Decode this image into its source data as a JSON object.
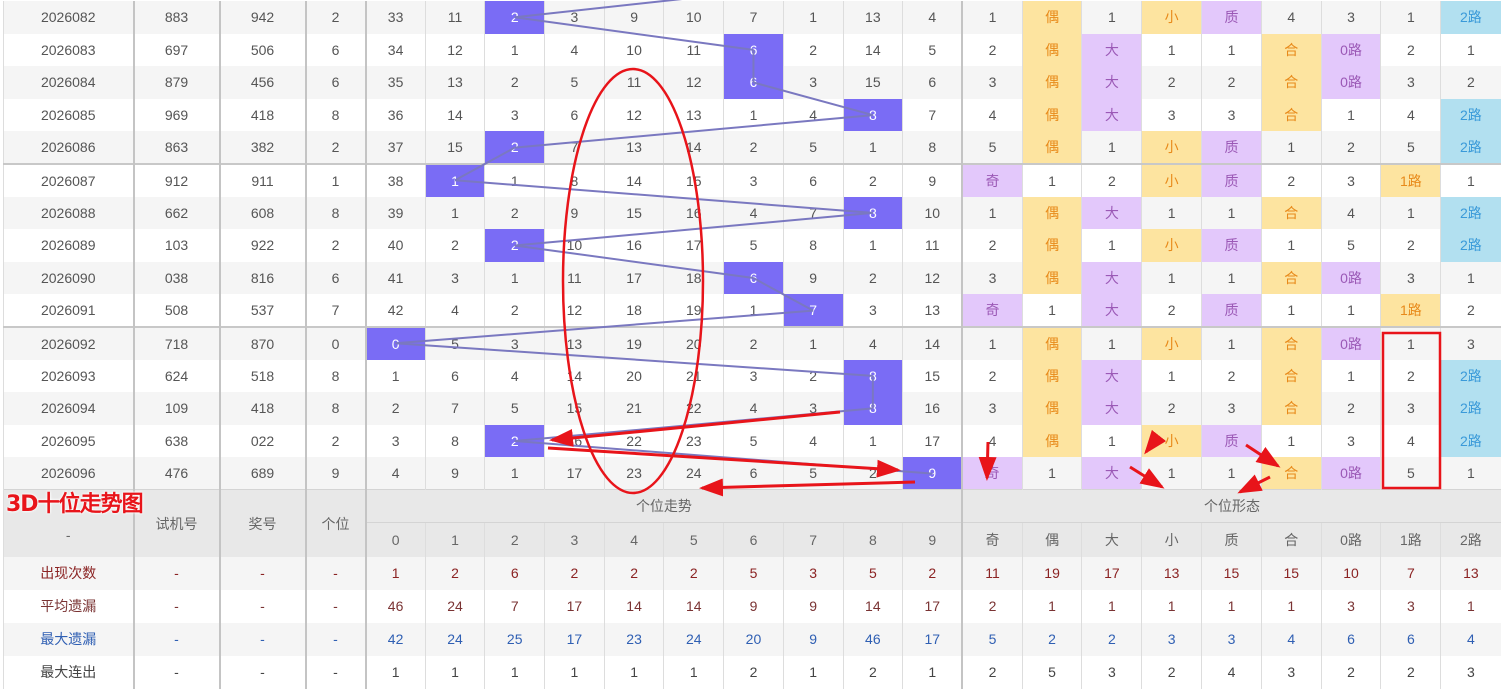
{
  "title_overlay": "3D十位走势图",
  "header": {
    "issue": "-",
    "test_number": "试机号",
    "draw_number": "奖号",
    "ones": "个位",
    "trend_group": "个位走势",
    "form_group": "个位形态",
    "digits": [
      "0",
      "1",
      "2",
      "3",
      "4",
      "5",
      "6",
      "7",
      "8",
      "9"
    ],
    "forms": [
      "奇",
      "偶",
      "大",
      "小",
      "质",
      "合",
      "0路",
      "1路",
      "2路"
    ]
  },
  "colors": {
    "hit": "#7a6cf5",
    "trend_line": "#7a78c0",
    "form_highlight": [
      "purple",
      "yellow",
      "purple",
      "yellow",
      "purple",
      "yellow",
      "purple",
      "yellow",
      "blue"
    ],
    "annotation": "#e8141a"
  },
  "rows": [
    {
      "issue": "2026082",
      "test": "883",
      "draw": "942",
      "ones": "2",
      "trend": [
        "33",
        "11",
        "2",
        "3",
        "9",
        "10",
        "7",
        "1",
        "13",
        "4"
      ],
      "form": [
        "1",
        "偶",
        "1",
        "小",
        "质",
        "4",
        "3",
        "1",
        "2路"
      ]
    },
    {
      "issue": "2026083",
      "test": "697",
      "draw": "506",
      "ones": "6",
      "trend": [
        "34",
        "12",
        "1",
        "4",
        "10",
        "11",
        "6",
        "2",
        "14",
        "5"
      ],
      "form": [
        "2",
        "偶",
        "大",
        "1",
        "1",
        "合",
        "0路",
        "2",
        "1"
      ]
    },
    {
      "issue": "2026084",
      "test": "879",
      "draw": "456",
      "ones": "6",
      "trend": [
        "35",
        "13",
        "2",
        "5",
        "11",
        "12",
        "6",
        "3",
        "15",
        "6"
      ],
      "form": [
        "3",
        "偶",
        "大",
        "2",
        "2",
        "合",
        "0路",
        "3",
        "2"
      ]
    },
    {
      "issue": "2026085",
      "test": "969",
      "draw": "418",
      "ones": "8",
      "trend": [
        "36",
        "14",
        "3",
        "6",
        "12",
        "13",
        "1",
        "4",
        "8",
        "7"
      ],
      "form": [
        "4",
        "偶",
        "大",
        "3",
        "3",
        "合",
        "1",
        "4",
        "2路"
      ]
    },
    {
      "issue": "2026086",
      "test": "863",
      "draw": "382",
      "ones": "2",
      "trend": [
        "37",
        "15",
        "2",
        "7",
        "13",
        "14",
        "2",
        "5",
        "1",
        "8"
      ],
      "form": [
        "5",
        "偶",
        "1",
        "小",
        "质",
        "1",
        "2",
        "5",
        "2路"
      ]
    },
    {
      "issue": "2026087",
      "test": "912",
      "draw": "911",
      "ones": "1",
      "trend": [
        "38",
        "1",
        "1",
        "8",
        "14",
        "15",
        "3",
        "6",
        "2",
        "9"
      ],
      "form": [
        "奇",
        "1",
        "2",
        "小",
        "质",
        "2",
        "3",
        "1路",
        "1"
      ]
    },
    {
      "issue": "2026088",
      "test": "662",
      "draw": "608",
      "ones": "8",
      "trend": [
        "39",
        "1",
        "2",
        "9",
        "15",
        "16",
        "4",
        "7",
        "8",
        "10"
      ],
      "form": [
        "1",
        "偶",
        "大",
        "1",
        "1",
        "合",
        "4",
        "1",
        "2路"
      ]
    },
    {
      "issue": "2026089",
      "test": "103",
      "draw": "922",
      "ones": "2",
      "trend": [
        "40",
        "2",
        "2",
        "10",
        "16",
        "17",
        "5",
        "8",
        "1",
        "11"
      ],
      "form": [
        "2",
        "偶",
        "1",
        "小",
        "质",
        "1",
        "5",
        "2",
        "2路"
      ]
    },
    {
      "issue": "2026090",
      "test": "038",
      "draw": "816",
      "ones": "6",
      "trend": [
        "41",
        "3",
        "1",
        "11",
        "17",
        "18",
        "6",
        "9",
        "2",
        "12"
      ],
      "form": [
        "3",
        "偶",
        "大",
        "1",
        "1",
        "合",
        "0路",
        "3",
        "1"
      ]
    },
    {
      "issue": "2026091",
      "test": "508",
      "draw": "537",
      "ones": "7",
      "trend": [
        "42",
        "4",
        "2",
        "12",
        "18",
        "19",
        "1",
        "7",
        "3",
        "13"
      ],
      "form": [
        "奇",
        "1",
        "大",
        "2",
        "质",
        "1",
        "1",
        "1路",
        "2"
      ]
    },
    {
      "issue": "2026092",
      "test": "718",
      "draw": "870",
      "ones": "0",
      "trend": [
        "0",
        "5",
        "3",
        "13",
        "19",
        "20",
        "2",
        "1",
        "4",
        "14"
      ],
      "form": [
        "1",
        "偶",
        "1",
        "小",
        "1",
        "合",
        "0路",
        "1",
        "3"
      ]
    },
    {
      "issue": "2026093",
      "test": "624",
      "draw": "518",
      "ones": "8",
      "trend": [
        "1",
        "6",
        "4",
        "14",
        "20",
        "21",
        "3",
        "2",
        "8",
        "15"
      ],
      "form": [
        "2",
        "偶",
        "大",
        "1",
        "2",
        "合",
        "1",
        "2",
        "2路"
      ]
    },
    {
      "issue": "2026094",
      "test": "109",
      "draw": "418",
      "ones": "8",
      "trend": [
        "2",
        "7",
        "5",
        "15",
        "21",
        "22",
        "4",
        "3",
        "8",
        "16"
      ],
      "form": [
        "3",
        "偶",
        "大",
        "2",
        "3",
        "合",
        "2",
        "3",
        "2路"
      ]
    },
    {
      "issue": "2026095",
      "test": "638",
      "draw": "022",
      "ones": "2",
      "trend": [
        "3",
        "8",
        "2",
        "16",
        "22",
        "23",
        "5",
        "4",
        "1",
        "17"
      ],
      "form": [
        "4",
        "偶",
        "1",
        "小",
        "质",
        "1",
        "3",
        "4",
        "2路"
      ]
    },
    {
      "issue": "2026096",
      "test": "476",
      "draw": "689",
      "ones": "9",
      "trend": [
        "4",
        "9",
        "1",
        "17",
        "23",
        "24",
        "6",
        "5",
        "2",
        "9"
      ],
      "form": [
        "奇",
        "1",
        "大",
        "1",
        "1",
        "合",
        "0路",
        "5",
        "1"
      ]
    }
  ],
  "stats": [
    {
      "label": "出现次数",
      "test": "-",
      "draw": "-",
      "ones": "-",
      "trend": [
        "1",
        "2",
        "6",
        "2",
        "2",
        "2",
        "5",
        "3",
        "5",
        "2"
      ],
      "form": [
        "11",
        "19",
        "17",
        "13",
        "15",
        "15",
        "10",
        "7",
        "13"
      ]
    },
    {
      "label": "平均遗漏",
      "test": "-",
      "draw": "-",
      "ones": "-",
      "trend": [
        "46",
        "24",
        "7",
        "17",
        "14",
        "14",
        "9",
        "9",
        "14",
        "17"
      ],
      "form": [
        "2",
        "1",
        "1",
        "1",
        "1",
        "1",
        "3",
        "3",
        "1"
      ]
    },
    {
      "label": "最大遗漏",
      "test": "-",
      "draw": "-",
      "ones": "-",
      "trend": [
        "42",
        "24",
        "25",
        "17",
        "23",
        "24",
        "20",
        "9",
        "46",
        "17"
      ],
      "form": [
        "5",
        "2",
        "2",
        "3",
        "3",
        "4",
        "6",
        "6",
        "4"
      ]
    },
    {
      "label": "最大连出",
      "test": "-",
      "draw": "-",
      "ones": "-",
      "trend": [
        "1",
        "1",
        "1",
        "1",
        "1",
        "1",
        "2",
        "1",
        "2",
        "1"
      ],
      "form": [
        "2",
        "5",
        "3",
        "2",
        "4",
        "3",
        "2",
        "2",
        "3"
      ]
    }
  ]
}
